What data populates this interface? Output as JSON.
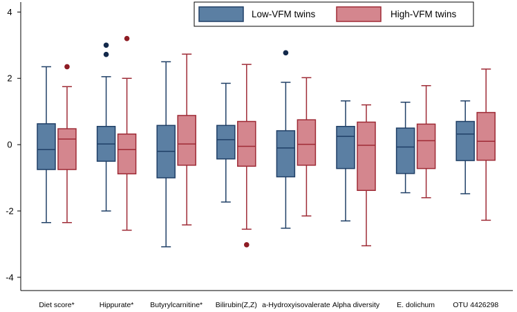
{
  "chart_data": {
    "type": "boxplot",
    "title": "",
    "xlabel": "",
    "ylabel": "",
    "ylim": [
      -4.4,
      4.3
    ],
    "yticks": [
      4,
      2,
      0,
      -2,
      -4
    ],
    "grid": false,
    "legend_position": "top-right",
    "categories": [
      "Diet score*",
      "Hippurate*",
      "Butyrylcarnitine*",
      "Bilirubin(Z,Z)",
      "a-Hydroxyisovalerate",
      "Alpha diversity",
      "E. dolichum",
      "OTU 4426298"
    ],
    "series": [
      {
        "name": "Low-VFM twins",
        "fill": "#5b7fa3",
        "stroke": "#1f3f66",
        "outlier_color": "#13294b",
        "boxes": [
          {
            "min": -2.35,
            "q1": -0.75,
            "median": -0.15,
            "q3": 0.63,
            "max": 2.35,
            "outliers": []
          },
          {
            "min": -2.0,
            "q1": -0.5,
            "median": 0.02,
            "q3": 0.55,
            "max": 2.05,
            "outliers": [
              2.72,
              3.0
            ]
          },
          {
            "min": -3.08,
            "q1": -1.0,
            "median": -0.2,
            "q3": 0.58,
            "max": 2.5,
            "outliers": []
          },
          {
            "min": -1.73,
            "q1": -0.43,
            "median": 0.15,
            "q3": 0.58,
            "max": 1.85,
            "outliers": []
          },
          {
            "min": -2.52,
            "q1": -0.97,
            "median": -0.1,
            "q3": 0.42,
            "max": 1.88,
            "outliers": [
              2.77
            ]
          },
          {
            "min": -2.3,
            "q1": -0.72,
            "median": 0.25,
            "q3": 0.55,
            "max": 1.32,
            "outliers": []
          },
          {
            "min": -1.45,
            "q1": -0.87,
            "median": -0.07,
            "q3": 0.5,
            "max": 1.28,
            "outliers": []
          },
          {
            "min": -1.48,
            "q1": -0.48,
            "median": 0.32,
            "q3": 0.7,
            "max": 1.32,
            "outliers": []
          }
        ]
      },
      {
        "name": "High-VFM twins",
        "fill": "#d4868e",
        "stroke": "#9e2a35",
        "outlier_color": "#8e1c24",
        "boxes": [
          {
            "min": -2.35,
            "q1": -0.75,
            "median": 0.17,
            "q3": 0.48,
            "max": 1.75,
            "outliers": [
              2.35
            ]
          },
          {
            "min": -2.58,
            "q1": -0.88,
            "median": -0.15,
            "q3": 0.32,
            "max": 2.0,
            "outliers": [
              3.2
            ]
          },
          {
            "min": -2.42,
            "q1": -0.62,
            "median": 0.02,
            "q3": 0.88,
            "max": 2.73,
            "outliers": []
          },
          {
            "min": -2.55,
            "q1": -0.65,
            "median": -0.05,
            "q3": 0.7,
            "max": 2.42,
            "outliers": [
              -3.02
            ]
          },
          {
            "min": -2.15,
            "q1": -0.62,
            "median": 0.01,
            "q3": 0.75,
            "max": 2.02,
            "outliers": []
          },
          {
            "min": -3.05,
            "q1": -1.38,
            "median": -0.02,
            "q3": 0.68,
            "max": 1.2,
            "outliers": []
          },
          {
            "min": -1.6,
            "q1": -0.72,
            "median": 0.12,
            "q3": 0.62,
            "max": 1.78,
            "outliers": []
          },
          {
            "min": -2.28,
            "q1": -0.47,
            "median": 0.1,
            "q3": 0.97,
            "max": 2.28,
            "outliers": []
          }
        ]
      }
    ]
  }
}
